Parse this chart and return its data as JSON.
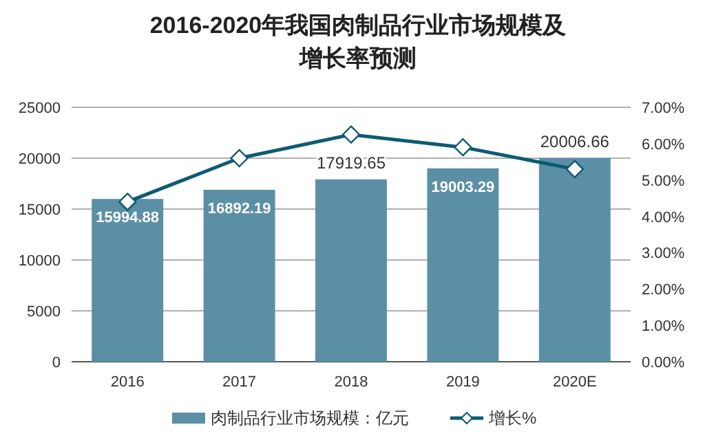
{
  "chart_data": {
    "type": "bar",
    "title": "2016-2020年我国肉制品行业市场规模及增长率预测",
    "categories": [
      "2016",
      "2017",
      "2018",
      "2019",
      "2020E"
    ],
    "series": [
      {
        "name": "肉制品行业市场规模：亿元",
        "color": "#5b8fa6",
        "values": [
          15994.88,
          16892.19,
          17919.65,
          19003.29,
          20006.66
        ],
        "data_labels": true
      },
      {
        "name": "增长%",
        "type": "line",
        "axis": "y2",
        "color": "#0e5a73",
        "marker": "diamond",
        "values": [
          4.4,
          5.6,
          6.25,
          5.9,
          5.3
        ]
      }
    ],
    "ylim": [
      0,
      25000
    ],
    "yticks": [
      0,
      5000,
      10000,
      15000,
      20000,
      25000
    ],
    "y2lim": [
      0,
      7
    ],
    "y2ticks": [
      {
        "value": 0,
        "label": "0.00%"
      },
      {
        "value": 1,
        "label": "1.00%"
      },
      {
        "value": 2,
        "label": "2.00%"
      },
      {
        "value": 3,
        "label": "3.00%"
      },
      {
        "value": 4,
        "label": "4.00%"
      },
      {
        "value": 5,
        "label": "5.00%"
      },
      {
        "value": 6,
        "label": "6.00%"
      },
      {
        "value": 7,
        "label": "7.00%"
      }
    ],
    "grid": "y",
    "legend": "bottom"
  }
}
